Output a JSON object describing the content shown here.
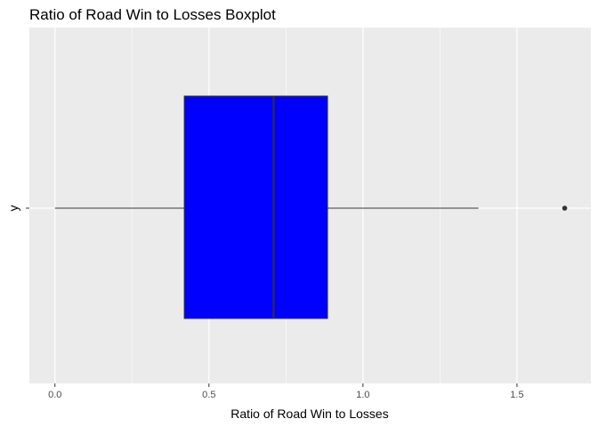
{
  "chart_data": {
    "type": "boxplot",
    "title": "Ratio of Road Win to Losses Boxplot",
    "xlabel": "Ratio of Road Win to Losses",
    "ylabel": "y",
    "xlim": [
      -0.083,
      1.74
    ],
    "x_ticks": [
      0.0,
      0.5,
      1.0,
      1.5
    ],
    "x_tick_labels": [
      "0.0",
      "0.5",
      "1.0",
      "1.5"
    ],
    "x_minor_ticks": [
      0.25,
      0.75,
      1.25
    ],
    "y_tick_labels": [
      "y"
    ],
    "grid": true,
    "box": {
      "whisker_low": 0.0,
      "q1": 0.42,
      "median": 0.71,
      "q3": 0.885,
      "whisker_high": 1.375,
      "outliers": [
        1.655
      ]
    },
    "colors": {
      "panel_background": "#ebebeb",
      "grid": "#ffffff",
      "box_fill": "#0000ff",
      "box_outline": "#333333",
      "whisker": "#333333",
      "outlier": "#333333",
      "tick_text": "#4d4d4d",
      "title_text": "#000000"
    }
  }
}
